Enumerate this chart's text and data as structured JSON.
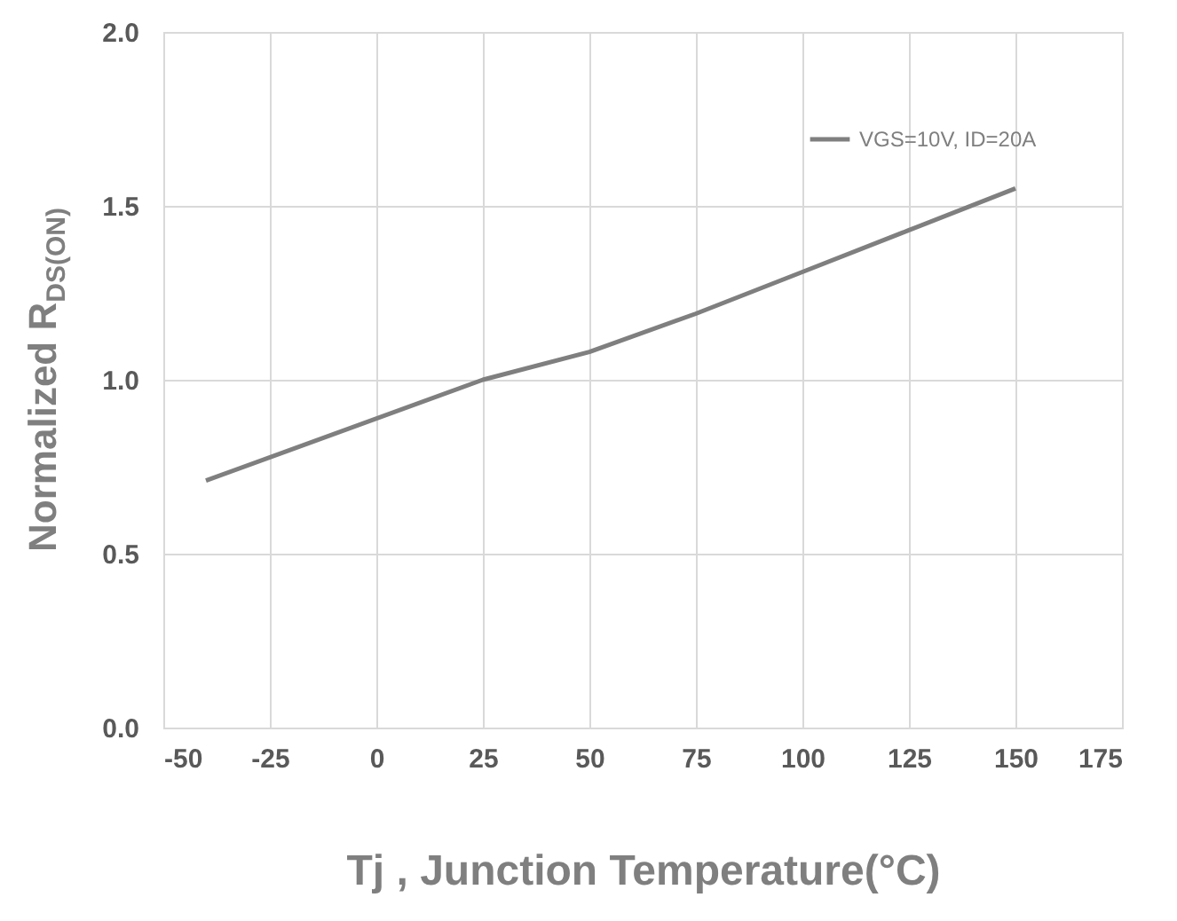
{
  "chart_data": {
    "type": "line",
    "xlabel": "Tj , Junction Temperature(°C)",
    "ylabel": "Normalized R$_{DS(ON)}$",
    "series": [
      {
        "name": "VGS=10V, ID=20A",
        "color": "#7f7f7f",
        "x": [
          -40,
          25,
          50,
          75,
          100,
          125,
          150
        ],
        "values": [
          0.71,
          1.0,
          1.08,
          1.19,
          1.31,
          1.43,
          1.55
        ]
      }
    ],
    "xlim": [
      -50,
      175
    ],
    "xticks": [
      -50,
      -25,
      0,
      25,
      50,
      75,
      100,
      125,
      150,
      175
    ],
    "ylim": [
      0,
      2
    ],
    "yticks": [
      {
        "value": 0,
        "label": "0.0"
      },
      {
        "value": 0.5,
        "label": "0.5"
      },
      {
        "value": 1,
        "label": "1.0"
      },
      {
        "value": 1.5,
        "label": "1.5"
      },
      {
        "value": 2,
        "label": "2.0"
      }
    ],
    "grid": true,
    "legend": "top right",
    "marker": "none",
    "line_style": "solid"
  }
}
